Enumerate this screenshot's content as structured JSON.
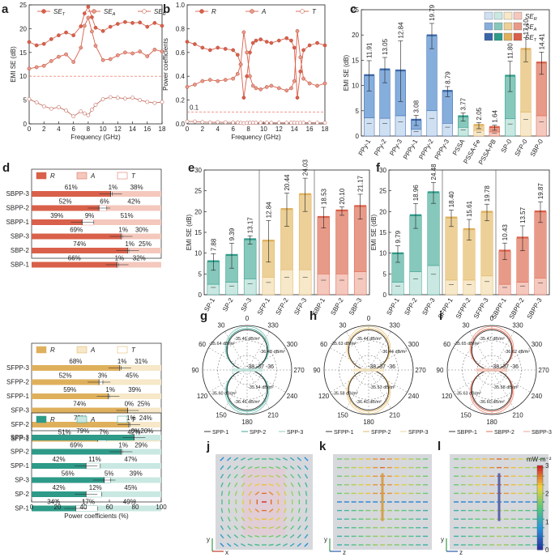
{
  "panels": {
    "a": "a",
    "b": "b",
    "c": "c",
    "d": "d",
    "e": "e",
    "f": "f",
    "g": "g",
    "h": "h",
    "i": "i",
    "j": "j",
    "k": "k",
    "l": "l"
  },
  "colors": {
    "red": "#d9604a",
    "redmid": "#e89a88",
    "redlight": "#f4c8bd",
    "green": "#2e9a88",
    "greenmid": "#86c8bb",
    "greenlight": "#c9e8e1",
    "gold": "#dfb05c",
    "goldmid": "#ecd097",
    "goldlight": "#f6e8c8",
    "blue": "#3a66a8",
    "bluemid": "#86aedd",
    "bluelight": "#cfe0f2",
    "dashed": "#f08a7c",
    "black": "#222222",
    "gray": "#888888"
  },
  "chart_data": [
    {
      "id": "a",
      "type": "line",
      "ylabel": "EMI SE (dB)",
      "xlabel": "Frequency (GHz)",
      "xlim": [
        0,
        18
      ],
      "ylim": [
        0,
        25
      ],
      "xticks": [
        0,
        2,
        4,
        6,
        8,
        10,
        12,
        14,
        16,
        18
      ],
      "yticks": [
        0,
        5,
        10,
        15,
        20,
        25
      ],
      "threshold": 10,
      "x": [
        0,
        1,
        2,
        3,
        4,
        5,
        6,
        7,
        7.5,
        8,
        8.5,
        9,
        10,
        11,
        12,
        13,
        14,
        15,
        16,
        17,
        18
      ],
      "series": [
        {
          "name": "SE",
          "sub": "T",
          "values": [
            17.2,
            16.5,
            16.8,
            17.8,
            18.6,
            19.2,
            18.6,
            20.5,
            23.2,
            24.6,
            22.4,
            20.2,
            19.5,
            20.4,
            21.0,
            21.4,
            21.2,
            21.3,
            20.4,
            21.2,
            20.6
          ]
        },
        {
          "name": "SE",
          "sub": "A",
          "values": [
            11.6,
            11.9,
            12.2,
            13.2,
            14.1,
            14.6,
            13.0,
            16.0,
            20.6,
            22.3,
            19.4,
            16.4,
            13.4,
            13.6,
            14.4,
            15.0,
            14.8,
            15.2,
            14.2,
            15.6,
            15.2
          ]
        },
        {
          "name": "SE",
          "sub": "R",
          "values": [
            5.2,
            4.5,
            3.7,
            3.2,
            3.5,
            2.8,
            1.6,
            2.6,
            2.2,
            1.8,
            3.0,
            4.0,
            5.2,
            5.6,
            5.5,
            5.3,
            5.5,
            5.0,
            4.6,
            4.4,
            4.6
          ]
        }
      ]
    },
    {
      "id": "b",
      "type": "line",
      "ylabel": "Power coefficients",
      "xlabel": "Frequency (GHz)",
      "xlim": [
        0,
        18
      ],
      "ylim": [
        0,
        1
      ],
      "xticks": [
        0,
        2,
        4,
        6,
        8,
        10,
        12,
        14,
        16,
        18
      ],
      "yticks": [
        "0.0",
        "0.2",
        "0.4",
        "0.6",
        "0.8",
        "1.0"
      ],
      "threshold": 0.1,
      "threshold_label": "0.1",
      "x": [
        0,
        1,
        2,
        3,
        4,
        5,
        6,
        6.6,
        7,
        7.4,
        7.8,
        8.2,
        8.6,
        9.0,
        9.6,
        10.4,
        11,
        12,
        13,
        13.6,
        14,
        14.4,
        14.8,
        15.2,
        16,
        17,
        18
      ],
      "series": [
        {
          "name": "R",
          "values": [
            0.69,
            0.67,
            0.64,
            0.62,
            0.64,
            0.63,
            0.62,
            0.58,
            0.5,
            0.22,
            0.4,
            0.6,
            0.68,
            0.7,
            0.71,
            0.69,
            0.68,
            0.7,
            0.72,
            0.7,
            0.64,
            0.22,
            0.44,
            0.62,
            0.66,
            0.68,
            0.66
          ]
        },
        {
          "name": "A",
          "values": [
            0.31,
            0.33,
            0.36,
            0.37,
            0.36,
            0.37,
            0.38,
            0.42,
            0.5,
            0.77,
            0.6,
            0.4,
            0.32,
            0.3,
            0.29,
            0.31,
            0.32,
            0.3,
            0.28,
            0.3,
            0.36,
            0.78,
            0.56,
            0.38,
            0.34,
            0.32,
            0.34
          ]
        },
        {
          "name": "T",
          "values": [
            0.02,
            0.02,
            0.015,
            0.013,
            0.014,
            0.013,
            0.012,
            0.012,
            0.008,
            0.006,
            0.008,
            0.01,
            0.01,
            0.01,
            0.009,
            0.01,
            0.009,
            0.009,
            0.009,
            0.01,
            0.01,
            0.008,
            0.009,
            0.01,
            0.01,
            0.009,
            0.009
          ]
        }
      ]
    },
    {
      "id": "c",
      "type": "bar",
      "ylabel": "EMI SE (dB)",
      "ylim": [
        0,
        25
      ],
      "yticks": [
        0,
        5,
        10,
        15,
        20,
        25
      ],
      "categories": [
        "PPy-1",
        "PPy-2",
        "PPy-3",
        "PPPy-1",
        "PPPy-2",
        "PPPy-3",
        "PSSA",
        "PSSA-Fe",
        "PSSA-PB",
        "SP-0",
        "SFP-0",
        "SBP-0"
      ],
      "groups": [
        "blue",
        "blue",
        "blue",
        "blue",
        "blue",
        "blue",
        "green",
        "gold",
        "red",
        "green",
        "gold",
        "red"
      ],
      "values": [
        11.91,
        13.05,
        12.84,
        3.08,
        19.79,
        8.79,
        3.77,
        2.05,
        1.64,
        11.8,
        17.1,
        14.41
      ],
      "labels": [
        "11.91",
        "13.05",
        "12.84",
        "3.08",
        "19.79",
        "8.79",
        "3.77",
        "2.05",
        "1.64",
        "11.80",
        "17.10",
        "14.41"
      ],
      "se_r": [
        3.6,
        3.5,
        4.0,
        1.3,
        5.0,
        2.5,
        1.7,
        1.1,
        0.8,
        3.4,
        4.7,
        4.0
      ],
      "err": [
        3,
        2.5,
        6,
        1,
        2.5,
        1,
        0.8,
        0.6,
        0.5,
        3,
        2.4,
        2.2
      ],
      "legend": [
        "SE",
        "SE",
        "SE"
      ],
      "legend_subs": [
        "R",
        "A",
        "T"
      ]
    },
    {
      "id": "d",
      "type": "bar",
      "xlabel": "Power coefficients (%)",
      "xticks": [
        0,
        20,
        40,
        60,
        80,
        100
      ],
      "groups": [
        {
          "color": "red",
          "legend": [
            "R",
            "A",
            "T"
          ],
          "items": [
            {
              "name": "SBPP-3",
              "r": 61,
              "t": 1,
              "a": 38
            },
            {
              "name": "SBPP-2",
              "r": 52,
              "t": 6,
              "a": 42
            },
            {
              "name": "SBPP-1",
              "r": 39,
              "t": 9,
              "a": 51
            },
            {
              "name": "SBP-3",
              "r": 69,
              "t": 1,
              "a": 30
            },
            {
              "name": "SBP-2",
              "r": 74,
              "t": 1,
              "a": 25
            },
            {
              "name": "SBP-1",
              "r": 66,
              "t": 1,
              "a": 32
            }
          ]
        },
        {
          "color": "gold",
          "legend": [
            "R",
            "A",
            "T"
          ],
          "items": [
            {
              "name": "SFPP-3",
              "r": 68,
              "t": 1,
              "a": 31
            },
            {
              "name": "SFPP-2",
              "r": 52,
              "t": 3,
              "a": 45
            },
            {
              "name": "SFPP-1",
              "r": 59,
              "t": 1,
              "a": 39
            },
            {
              "name": "SFP-3",
              "r": 74,
              "t": 0,
              "a": 25
            },
            {
              "name": "SFP-2",
              "r": 75,
              "t": 1,
              "a": 24
            },
            {
              "name": "SFP-1",
              "r": 51,
              "t": 7,
              "a": 42
            }
          ]
        },
        {
          "color": "green",
          "legend": [
            "R",
            "A",
            "T"
          ],
          "items": [
            {
              "name": "SPP-3",
              "r": 79,
              "t": 0,
              "a": 20
            },
            {
              "name": "SPP-2",
              "r": 69,
              "t": 1,
              "a": 29
            },
            {
              "name": "SPP-1",
              "r": 42,
              "t": 11,
              "a": 47
            },
            {
              "name": "SP-3",
              "r": 56,
              "t": 5,
              "a": 39
            },
            {
              "name": "SP-2",
              "r": 42,
              "t": 12,
              "a": 45
            },
            {
              "name": "SP-1",
              "r": 34,
              "t": 17,
              "a": 49
            }
          ]
        }
      ]
    },
    {
      "id": "e",
      "type": "bar",
      "ylabel": "EMI SE (dB)",
      "ylim": [
        0,
        30
      ],
      "yticks": [
        0,
        5,
        10,
        15,
        20,
        25,
        30
      ],
      "categories": [
        "SP-1",
        "SP-2",
        "SP-3",
        "SFP-1",
        "SFP-2",
        "SFP-3",
        "SBP-1",
        "SBP-2",
        "SBP-3"
      ],
      "groups": [
        "green",
        "green",
        "green",
        "gold",
        "gold",
        "gold",
        "red",
        "red",
        "red"
      ],
      "values": [
        7.88,
        9.39,
        13.17,
        12.84,
        20.44,
        24.03,
        18.53,
        20.1,
        21.17
      ],
      "labels": [
        "7.88",
        "9.39",
        "13.17",
        "12.84",
        "20.44",
        "24.03",
        "18.53",
        "20.10",
        "21.17"
      ],
      "se_r": [
        2.5,
        3.0,
        3.8,
        4.2,
        6.0,
        6.0,
        5.0,
        5.0,
        5.5
      ],
      "err": [
        2,
        3,
        1,
        5,
        4,
        4,
        2.5,
        1,
        3
      ]
    },
    {
      "id": "f",
      "type": "bar",
      "ylabel": "EMI SE (dB)",
      "ylim": [
        0,
        30
      ],
      "yticks": [
        0,
        5,
        10,
        15,
        20,
        25,
        30
      ],
      "categories": [
        "SPP-1",
        "SPP-2",
        "SPP-3",
        "SFPP-1",
        "SFPP-2",
        "SFPP-3",
        "SBPP-1",
        "SBPP-2",
        "SBPP-3"
      ],
      "groups": [
        "green",
        "green",
        "green",
        "gold",
        "gold",
        "gold",
        "red",
        "red",
        "red"
      ],
      "values": [
        9.79,
        18.96,
        24.48,
        18.4,
        15.61,
        19.78,
        10.43,
        13.57,
        19.87
      ],
      "labels": [
        "9.79",
        "18.96",
        "24.48",
        "18.40",
        "15.61",
        "19.78",
        "10.43",
        "13.57",
        "19.87"
      ],
      "se_r": [
        3.0,
        5.5,
        7.0,
        3.5,
        3.5,
        4.5,
        2.5,
        3.0,
        4.0
      ],
      "err": [
        2,
        3,
        2.5,
        2,
        2.5,
        2,
        2,
        3,
        2.5
      ]
    },
    {
      "id": "g",
      "type": "polar",
      "color": "green",
      "angle_labels": [
        "0",
        "30",
        "60",
        "90",
        "120",
        "150",
        "180",
        "210",
        "240",
        "270",
        "300",
        "330"
      ],
      "ring_labels": [
        "-38",
        "-37",
        "-36"
      ],
      "annotations": [
        "-35.46 dB/m²",
        "-35.64 dB/m²",
        "-36.48 dB/m²",
        "-35.60 dB/m²",
        "-35.54 dB/m²",
        "-36.46 dB/m²"
      ],
      "legend": [
        "SPP-1",
        "SPP-2",
        "SPP-3"
      ]
    },
    {
      "id": "h",
      "type": "polar",
      "color": "gold",
      "angle_labels": [
        "0",
        "30",
        "60",
        "90",
        "120",
        "150",
        "180",
        "210",
        "240",
        "270",
        "300",
        "330"
      ],
      "ring_labels": [
        "-38",
        "-37",
        "-36"
      ],
      "annotations": [
        "-35.44 dB/m²",
        "-35.63 dB/m²",
        "-36.44 dB/m²",
        "-35.58 dB/m²",
        "-35.53 dB/m²",
        "-36.40 dB/m²"
      ],
      "legend": [
        "SFPP-1",
        "SFPP-2",
        "SFPP-3"
      ]
    },
    {
      "id": "i",
      "type": "polar",
      "color": "red",
      "angle_labels": [
        "0",
        "30",
        "60",
        "90",
        "120",
        "150",
        "180",
        "210",
        "240",
        "270",
        "300",
        "330"
      ],
      "ring_labels": [
        "-38",
        "-37",
        "-36"
      ],
      "annotations": [
        "-35.47 dB/m²",
        "-35.65 dB/m²",
        "-36.62 dB/m²",
        "-35.63 dB/m²",
        "-35.58 dB/m²",
        "-36.60 dB/m²"
      ],
      "legend": [
        "SBPP-1",
        "SBPP-2",
        "SBPP-3"
      ]
    },
    {
      "id": "jkl",
      "type": "heatmap",
      "colorbar_label": "mW·m⁻²",
      "colorbar_ticks": [
        "0",
        "1",
        "2",
        "3"
      ],
      "maps": [
        {
          "id": "j",
          "axes": [
            "y",
            "x"
          ]
        },
        {
          "id": "k",
          "axes": [
            "y",
            "z"
          ]
        },
        {
          "id": "l",
          "axes": [
            "y",
            "z"
          ]
        }
      ]
    }
  ]
}
